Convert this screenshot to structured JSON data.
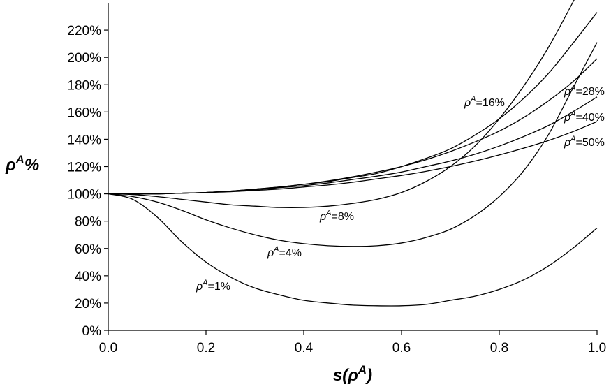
{
  "chart_data": {
    "type": "line",
    "title": "",
    "xlabel": "s(ρA)",
    "ylabel": "ρA%",
    "xlim": [
      0,
      1
    ],
    "ylim": [
      0,
      240
    ],
    "grid": false,
    "legend": "inline labels",
    "x_ticks": [
      "0.0",
      "0.2",
      "0.4",
      "0.6",
      "0.8",
      "1.0"
    ],
    "y_ticks": [
      "0%",
      "20%",
      "40%",
      "60%",
      "80%",
      "100%",
      "120%",
      "140%",
      "160%",
      "180%",
      "200%",
      "220%"
    ],
    "x": [
      0.0,
      0.05,
      0.1,
      0.15,
      0.2,
      0.25,
      0.3,
      0.35,
      0.4,
      0.45,
      0.5,
      0.55,
      0.6,
      0.65,
      0.7,
      0.75,
      0.8,
      0.85,
      0.9,
      0.95,
      1.0
    ],
    "series": [
      {
        "name": "ρA=1%",
        "label_text": "=1%",
        "values": [
          100,
          96,
          83,
          65,
          50,
          39,
          31,
          26,
          22,
          20,
          18.5,
          18,
          18,
          19,
          22,
          25,
          30,
          37,
          47,
          60,
          75
        ]
      },
      {
        "name": "ρA=4%",
        "label_text": "=4%",
        "values": [
          100,
          98,
          94,
          88,
          81,
          75,
          70,
          66,
          63.5,
          62,
          61.5,
          62,
          64,
          68,
          74,
          84,
          98,
          117,
          143,
          177,
          211
        ]
      },
      {
        "name": "ρA=8%",
        "label_text": "=8%",
        "values": [
          100,
          99.5,
          98,
          96,
          94,
          92,
          91,
          90,
          90,
          91,
          93,
          96,
          101,
          109,
          120,
          135,
          155,
          179,
          207,
          240,
          275
        ]
      },
      {
        "name": "ρA=16%",
        "label_text": "=16%",
        "values": [
          100,
          100,
          100,
          100.5,
          101,
          102,
          103.5,
          105,
          107,
          109,
          112,
          115,
          120,
          126,
          133,
          143,
          155,
          170,
          188,
          210,
          233
        ]
      },
      {
        "name": "ρA=28%",
        "label_text": "=28%",
        "values": [
          100,
          100,
          100,
          100.5,
          101,
          102,
          103.5,
          105,
          107,
          109.5,
          112.5,
          116,
          120,
          125,
          131,
          138,
          146,
          156,
          168,
          182,
          199
        ]
      },
      {
        "name": "ρA=40%",
        "label_text": "=40%",
        "values": [
          100,
          100,
          100,
          100.5,
          101,
          102,
          103,
          104.5,
          106,
          108,
          110.5,
          113,
          116,
          120,
          124,
          129,
          135,
          142,
          150,
          160,
          171
        ]
      },
      {
        "name": "ρA=50%",
        "label_text": "=50%",
        "values": [
          100,
          100,
          100,
          100.5,
          101,
          101.5,
          102.5,
          103.5,
          105,
          106.5,
          108.5,
          111,
          113.5,
          116.5,
          120,
          124,
          128.5,
          133.5,
          139,
          145.5,
          153
        ]
      }
    ]
  },
  "labels": {
    "y_symbol": "ρ",
    "y_sup": "A",
    "y_suffix": "%",
    "x_prefix": "s(ρ",
    "x_sup": "A",
    "x_suffix": ")",
    "series_symbol": "ρ",
    "series_sup": "A"
  }
}
